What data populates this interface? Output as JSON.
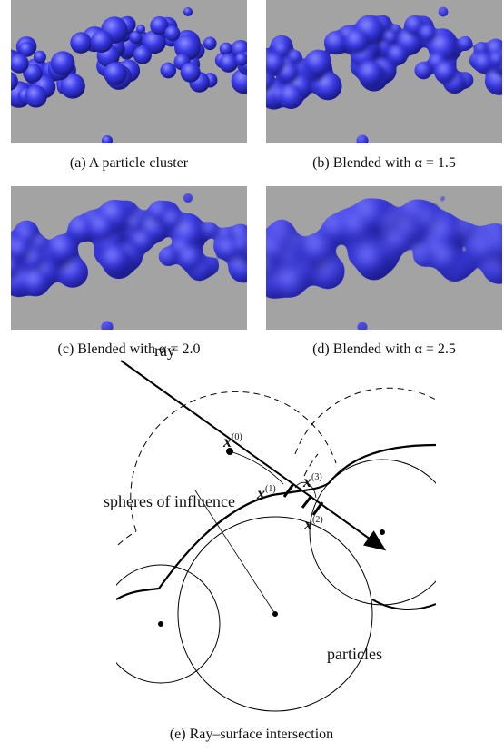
{
  "panels": [
    {
      "caption": "(a)  A particle cluster"
    },
    {
      "caption": "(b)  Blended with α = 1.5"
    },
    {
      "caption": "(c)  Blended with α = 2.0"
    },
    {
      "caption": "(d)  Blended with α = 2.5"
    }
  ],
  "diagram": {
    "ray_label": "ray",
    "points": [
      {
        "base": "x",
        "sup": "(0)"
      },
      {
        "base": "x",
        "sup": "(1)"
      },
      {
        "base": "x",
        "sup": "(3)"
      },
      {
        "base": "x",
        "sup": "(2)"
      }
    ],
    "spheres_label": "spheres of influence",
    "particles_label": "particles",
    "caption": "(e)  Ray–surface intersection"
  }
}
